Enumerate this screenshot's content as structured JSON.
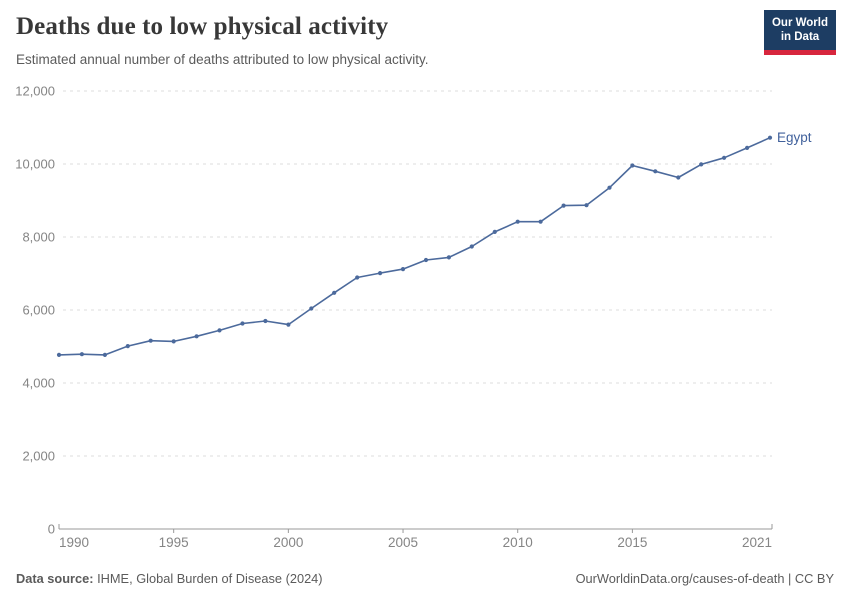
{
  "header": {
    "title": "Deaths due to low physical activity",
    "subtitle": "Estimated annual number of deaths attributed to low physical activity.",
    "logo": {
      "line1": "Our World",
      "line2": "in Data"
    }
  },
  "footer": {
    "source_label": "Data source:",
    "source_text": " IHME, Global Burden of Disease (2024)",
    "credit": "OurWorldinData.org/causes-of-death | CC BY"
  },
  "colors": {
    "line": "#4c6a9c",
    "series_label": "#41619c",
    "grid": "#dcdcdc",
    "axis": "#999999",
    "tick_label": "#858585",
    "logo_bg": "#1d3d63",
    "logo_red": "#d7263d"
  },
  "chart_data": {
    "type": "line",
    "title": "Deaths due to low physical activity",
    "subtitle": "Estimated annual number of deaths attributed to low physical activity.",
    "xlabel": "",
    "ylabel": "",
    "xlim": [
      1990,
      2021
    ],
    "ylim": [
      0,
      12000
    ],
    "xticks": [
      1990,
      1995,
      2000,
      2005,
      2010,
      2015,
      2021
    ],
    "yticks": [
      0,
      2000,
      4000,
      6000,
      8000,
      10000,
      12000
    ],
    "grid": "horizontal-dashed",
    "legend_position": "end-of-line",
    "series": [
      {
        "name": "Egypt",
        "x": [
          1990,
          1991,
          1992,
          1993,
          1994,
          1995,
          1996,
          1997,
          1998,
          1999,
          2000,
          2001,
          2002,
          2003,
          2004,
          2005,
          2006,
          2007,
          2008,
          2009,
          2010,
          2011,
          2012,
          2013,
          2014,
          2015,
          2016,
          2017,
          2018,
          2019,
          2020,
          2021
        ],
        "values": [
          4770,
          4790,
          4770,
          5010,
          5160,
          5140,
          5280,
          5440,
          5630,
          5700,
          5600,
          6040,
          6470,
          6890,
          7010,
          7120,
          7370,
          7440,
          7740,
          8140,
          8420,
          8420,
          8860,
          8870,
          9350,
          9960,
          9800,
          9630,
          9990,
          10170,
          10440,
          10720
        ]
      }
    ]
  }
}
